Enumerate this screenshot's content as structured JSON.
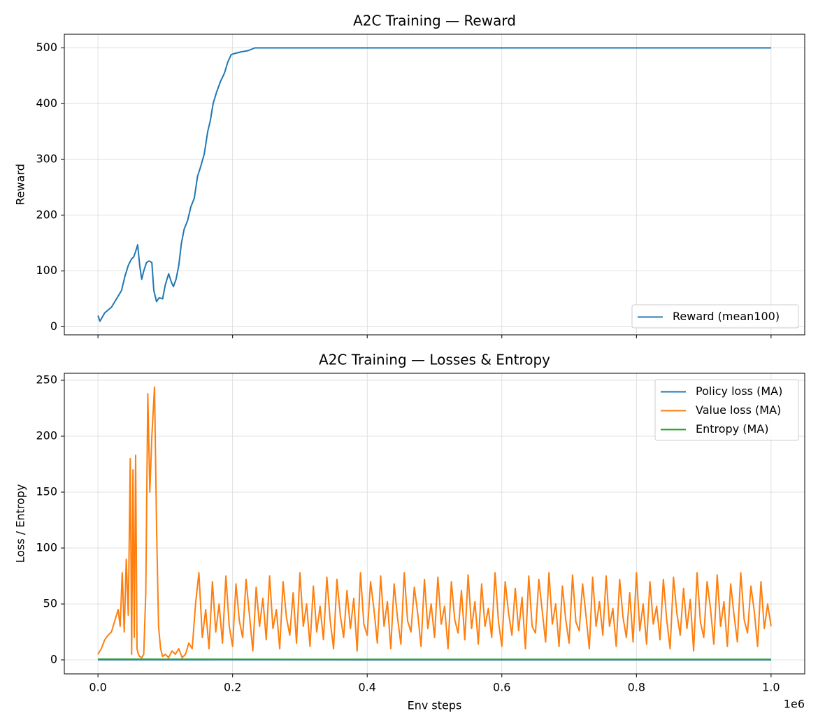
{
  "chart_data": [
    {
      "type": "line",
      "title": "A2C Training — Reward",
      "ylabel": "Reward",
      "xlim": [
        -50000,
        1050000
      ],
      "xticks": [
        0,
        200000,
        400000,
        600000,
        800000,
        1000000
      ],
      "show_xtick_labels": false,
      "ylim": [
        -14.5,
        524.5
      ],
      "yticks": [
        0,
        100,
        200,
        300,
        400,
        500
      ],
      "grid": true,
      "legend": "lower-right",
      "series": [
        {
          "name": "Reward (mean100)",
          "color": "#1f77b4",
          "x": [
            0,
            3000,
            10000,
            20000,
            30000,
            35000,
            40000,
            45000,
            50000,
            53000,
            56000,
            59000,
            62000,
            65000,
            68000,
            72000,
            76000,
            80000,
            83000,
            87000,
            91000,
            96000,
            100000,
            105000,
            109000,
            112000,
            116000,
            120000,
            124000,
            128000,
            133000,
            138000,
            143000,
            148000,
            152000,
            158000,
            163000,
            167000,
            171000,
            176000,
            182000,
            188000,
            193000,
            198000,
            203000,
            213000,
            223000,
            233000,
            1000000
          ],
          "values": [
            20,
            10,
            25,
            35,
            55,
            65,
            90,
            110,
            122,
            125,
            135,
            147,
            110,
            85,
            100,
            115,
            118,
            115,
            65,
            45,
            52,
            50,
            75,
            95,
            80,
            72,
            85,
            110,
            150,
            175,
            190,
            215,
            230,
            270,
            285,
            310,
            350,
            370,
            400,
            420,
            440,
            455,
            475,
            488,
            490,
            493,
            495,
            500,
            500
          ]
        }
      ]
    },
    {
      "type": "line",
      "title": "A2C Training — Losses & Entropy",
      "ylabel": "Loss / Entropy",
      "xlabel": "Env steps",
      "x_offset_label": "1e6",
      "xlim": [
        -50000,
        1050000
      ],
      "xticks": [
        {
          "value": 0,
          "label": "0.0"
        },
        {
          "value": 200000,
          "label": "0.2"
        },
        {
          "value": 400000,
          "label": "0.4"
        },
        {
          "value": 600000,
          "label": "0.6"
        },
        {
          "value": 800000,
          "label": "0.8"
        },
        {
          "value": 1000000,
          "label": "1.0"
        }
      ],
      "show_xtick_labels": true,
      "ylim": [
        -12.5,
        256.25
      ],
      "yticks": [
        0,
        50,
        100,
        150,
        200,
        250
      ],
      "grid": true,
      "legend": "upper-right",
      "series": [
        {
          "name": "Policy loss (MA)",
          "color": "#1f77b4",
          "x": [
            0,
            500000,
            1000000
          ],
          "values": [
            0.2,
            0.05,
            0.05
          ]
        },
        {
          "name": "Value loss (MA)",
          "color": "#ff7f0e",
          "x": [
            0,
            5000,
            10000,
            15000,
            20000,
            25000,
            30000,
            33000,
            36000,
            39000,
            42000,
            45000,
            48000,
            50000,
            52000,
            54000,
            56000,
            58000,
            60000,
            62000,
            65000,
            68000,
            71000,
            74000,
            77000,
            80000,
            84000,
            87000,
            90000,
            93000,
            96000,
            100000,
            105000,
            110000,
            115000,
            120000,
            125000,
            130000,
            135000,
            140000,
            145000,
            150000,
            155000,
            160000,
            165000,
            170000,
            175000,
            180000,
            185000,
            190000,
            195000,
            200000,
            205000,
            210000,
            215000,
            220000,
            225000,
            230000,
            235000,
            240000,
            245000,
            250000,
            255000,
            260000,
            265000,
            270000,
            275000,
            280000,
            285000,
            290000,
            295000,
            300000,
            305000,
            310000,
            315000,
            320000,
            325000,
            330000,
            335000,
            340000,
            345000,
            350000,
            355000,
            360000,
            365000,
            370000,
            375000,
            380000,
            385000,
            390000,
            395000,
            400000,
            405000,
            410000,
            415000,
            420000,
            425000,
            430000,
            435000,
            440000,
            445000,
            450000,
            455000,
            460000,
            465000,
            470000,
            475000,
            480000,
            485000,
            490000,
            495000,
            500000,
            505000,
            510000,
            515000,
            520000,
            525000,
            530000,
            535000,
            540000,
            545000,
            550000,
            555000,
            560000,
            565000,
            570000,
            575000,
            580000,
            585000,
            590000,
            595000,
            600000,
            605000,
            610000,
            615000,
            620000,
            625000,
            630000,
            635000,
            640000,
            645000,
            650000,
            655000,
            660000,
            665000,
            670000,
            675000,
            680000,
            685000,
            690000,
            695000,
            700000,
            705000,
            710000,
            715000,
            720000,
            725000,
            730000,
            735000,
            740000,
            745000,
            750000,
            755000,
            760000,
            765000,
            770000,
            775000,
            780000,
            785000,
            790000,
            795000,
            800000,
            805000,
            810000,
            815000,
            820000,
            825000,
            830000,
            835000,
            840000,
            845000,
            850000,
            855000,
            860000,
            865000,
            870000,
            875000,
            880000,
            885000,
            890000,
            895000,
            900000,
            905000,
            910000,
            915000,
            920000,
            925000,
            930000,
            935000,
            940000,
            945000,
            950000,
            955000,
            960000,
            965000,
            970000,
            975000,
            980000,
            985000,
            990000,
            995000,
            1000000
          ],
          "values": [
            5,
            10,
            18,
            22,
            25,
            35,
            45,
            30,
            78,
            25,
            90,
            40,
            180,
            5,
            170,
            20,
            183,
            10,
            5,
            3,
            2,
            5,
            60,
            238,
            150,
            200,
            244,
            120,
            30,
            10,
            3,
            5,
            2,
            8,
            5,
            10,
            2,
            5,
            15,
            10,
            50,
            78,
            20,
            45,
            10,
            70,
            25,
            50,
            15,
            75,
            30,
            12,
            68,
            35,
            20,
            72,
            40,
            8,
            65,
            30,
            55,
            18,
            75,
            28,
            45,
            10,
            70,
            38,
            22,
            60,
            15,
            78,
            30,
            50,
            12,
            66,
            25,
            48,
            18,
            74,
            35,
            10,
            72,
            40,
            20,
            62,
            28,
            55,
            8,
            78,
            32,
            22,
            70,
            45,
            15,
            75,
            30,
            52,
            10,
            68,
            38,
            14,
            78,
            35,
            25,
            65,
            42,
            12,
            72,
            28,
            50,
            20,
            74,
            32,
            48,
            10,
            70,
            36,
            24,
            62,
            18,
            76,
            28,
            52,
            14,
            68,
            30,
            46,
            20,
            78,
            34,
            12,
            70,
            42,
            22,
            64,
            26,
            56,
            10,
            75,
            30,
            24,
            72,
            44,
            16,
            78,
            32,
            50,
            12,
            66,
            36,
            15,
            76,
            34,
            26,
            68,
            40,
            10,
            74,
            30,
            52,
            22,
            75,
            30,
            46,
            12,
            72,
            38,
            20,
            60,
            16,
            78,
            26,
            50,
            14,
            70,
            32,
            48,
            18,
            72,
            36,
            10,
            74,
            42,
            22,
            64,
            28,
            54,
            8,
            78,
            34,
            20,
            70,
            46,
            14,
            76,
            30,
            52,
            12,
            68,
            40,
            16,
            78,
            36,
            24,
            66,
            44,
            12,
            70,
            28,
            50,
            30
          ]
        },
        {
          "name": "Entropy (MA)",
          "color": "#2ca02c",
          "x": [
            0,
            100000,
            300000,
            1000000
          ],
          "values": [
            0.69,
            0.6,
            0.5,
            0.5
          ]
        }
      ]
    }
  ]
}
